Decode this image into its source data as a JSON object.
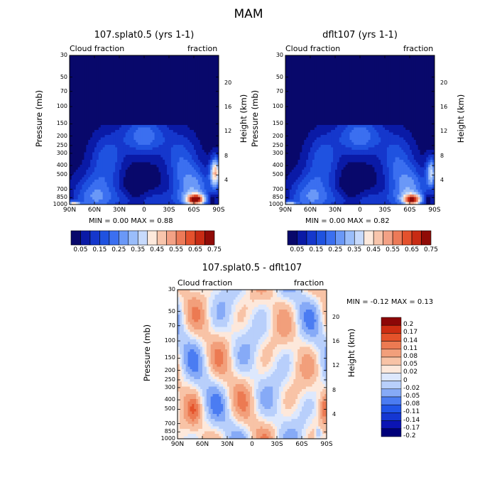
{
  "suptitle": "MAM",
  "panels": [
    {
      "title": "107.splat0.5 (yrs 1-1)",
      "left_label": "Cloud fraction",
      "right_label": "fraction",
      "ylabel": "Pressure (mb)",
      "ylabel_right": "Height (km)",
      "min_max": "MIN =   0.00   MAX =   0.88"
    },
    {
      "title": "dflt107 (yrs 1-1)",
      "left_label": "Cloud fraction",
      "right_label": "fraction",
      "ylabel": "Pressure (mb)",
      "ylabel_right": "Height (km)",
      "min_max": "MIN =   0.00   MAX =   0.82"
    },
    {
      "title": "107.splat0.5 - dflt107",
      "left_label": "Cloud fraction",
      "right_label": "fraction",
      "ylabel": "Pressure (mb)",
      "ylabel_right": "Height (km)",
      "min_max": "MIN =  -0.12   MAX =   0.13"
    }
  ],
  "colors": {
    "cbar_main": [
      "#08086b",
      "#0a1aa6",
      "#1537cc",
      "#1f52e0",
      "#3b6ff0",
      "#6a98f7",
      "#9abdfa",
      "#c7dafc",
      "#fde9dc",
      "#f8c5ac",
      "#f3a185",
      "#ec7a58",
      "#e4512d",
      "#c82b14",
      "#900b07"
    ],
    "cbar_diff": [
      "#00007a",
      "#0b14b4",
      "#1537d2",
      "#2155e8",
      "#4b7cf2",
      "#86aaf7",
      "#b8cffb",
      "#dde8fd",
      "#fde8db",
      "#f8c3a6",
      "#f29f7b",
      "#ec7a52",
      "#e4522a",
      "#cd2d12",
      "#8c0707"
    ]
  },
  "chart_data": [
    {
      "type": "heatmap",
      "title": "107.splat0.5 (yrs 1-1)",
      "xlabel": "",
      "ylabel": "Pressure (mb)",
      "ylabel_right": "Height (km)",
      "x_ticks": [
        "90N",
        "60N",
        "30N",
        "0",
        "30S",
        "60S",
        "90S"
      ],
      "x_tick_values": [
        90,
        60,
        30,
        0,
        -30,
        -60,
        -90
      ],
      "xlim": [
        90,
        -90
      ],
      "y_ticks": [
        "30",
        "50",
        "70",
        "100",
        "150",
        "200",
        "250",
        "300",
        "400",
        "500",
        "700",
        "850",
        "1000"
      ],
      "y_tick_values": [
        30,
        50,
        70,
        100,
        150,
        200,
        250,
        300,
        400,
        500,
        700,
        850,
        1000
      ],
      "ylim": [
        1000,
        30
      ],
      "height_ticks_km": [
        20,
        16,
        12,
        8,
        4
      ],
      "colorbar_labels": [
        "0.05",
        "0.15",
        "0.25",
        "0.35",
        "0.45",
        "0.55",
        "0.65",
        "0.75"
      ],
      "min": 0.0,
      "max": 0.88
    },
    {
      "type": "heatmap",
      "title": "dflt107 (yrs 1-1)",
      "xlabel": "",
      "ylabel": "Pressure (mb)",
      "ylabel_right": "Height (km)",
      "x_ticks": [
        "90N",
        "60N",
        "30N",
        "0",
        "30S",
        "60S",
        "90S"
      ],
      "x_tick_values": [
        90,
        60,
        30,
        0,
        -30,
        -60,
        -90
      ],
      "xlim": [
        90,
        -90
      ],
      "y_ticks": [
        "30",
        "50",
        "70",
        "100",
        "150",
        "200",
        "250",
        "300",
        "400",
        "500",
        "700",
        "850",
        "1000"
      ],
      "y_tick_values": [
        30,
        50,
        70,
        100,
        150,
        200,
        250,
        300,
        400,
        500,
        700,
        850,
        1000
      ],
      "ylim": [
        1000,
        30
      ],
      "height_ticks_km": [
        20,
        16,
        12,
        8,
        4
      ],
      "colorbar_labels": [
        "0.05",
        "0.15",
        "0.25",
        "0.35",
        "0.45",
        "0.55",
        "0.65",
        "0.75"
      ],
      "min": 0.0,
      "max": 0.82
    },
    {
      "type": "heatmap",
      "title": "107.splat0.5 - dflt107",
      "xlabel": "",
      "ylabel": "Pressure (mb)",
      "ylabel_right": "Height (km)",
      "x_ticks": [
        "90N",
        "60N",
        "30N",
        "0",
        "30S",
        "60S",
        "90S"
      ],
      "x_tick_values": [
        90,
        60,
        30,
        0,
        -30,
        -60,
        -90
      ],
      "xlim": [
        90,
        -90
      ],
      "y_ticks": [
        "30",
        "50",
        "70",
        "100",
        "150",
        "200",
        "250",
        "300",
        "400",
        "500",
        "700",
        "850",
        "1000"
      ],
      "y_tick_values": [
        30,
        50,
        70,
        100,
        150,
        200,
        250,
        300,
        400,
        500,
        700,
        850,
        1000
      ],
      "ylim": [
        1000,
        30
      ],
      "height_ticks_km": [
        20,
        16,
        12,
        8,
        4
      ],
      "colorbar_labels": [
        "0.2",
        "0.17",
        "0.14",
        "0.11",
        "0.08",
        "0.05",
        "0.02",
        "0",
        "-0.02",
        "-0.05",
        "-0.08",
        "-0.11",
        "-0.14",
        "-0.17",
        "-0.2"
      ],
      "min": -0.12,
      "max": 0.13
    }
  ]
}
